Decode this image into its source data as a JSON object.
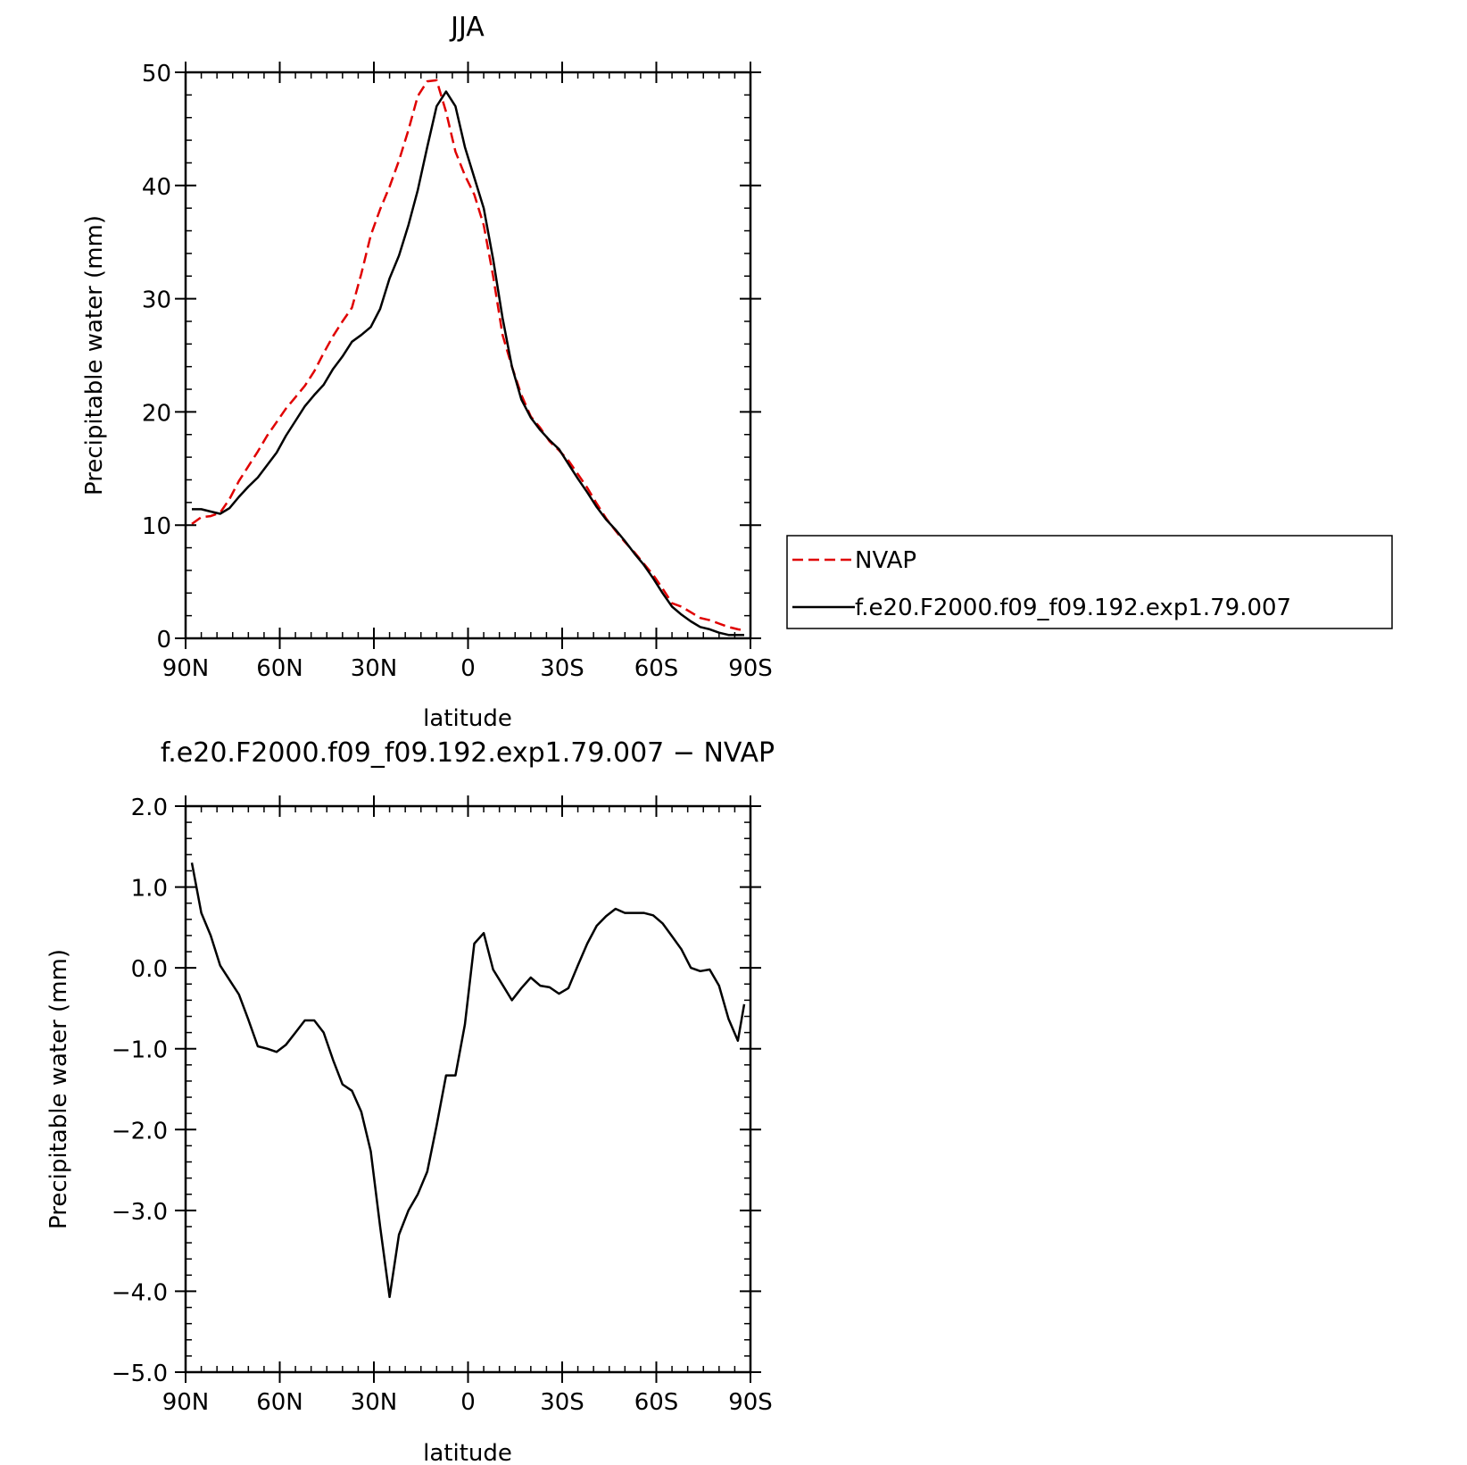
{
  "chart_data": [
    {
      "type": "line",
      "title": "JJA",
      "xlabel": "latitude",
      "ylabel": "Precipitable water (mm)",
      "xlim": [
        90,
        -90
      ],
      "ylim": [
        0,
        50
      ],
      "xticks": [
        {
          "value": 90,
          "label": "90N"
        },
        {
          "value": 60,
          "label": "60N"
        },
        {
          "value": 30,
          "label": "30N"
        },
        {
          "value": 0,
          "label": "0"
        },
        {
          "value": -30,
          "label": "30S"
        },
        {
          "value": -60,
          "label": "60S"
        },
        {
          "value": -90,
          "label": "90S"
        }
      ],
      "yticks": [
        {
          "value": 0,
          "label": "0"
        },
        {
          "value": 10,
          "label": "10"
        },
        {
          "value": 20,
          "label": "20"
        },
        {
          "value": 30,
          "label": "30"
        },
        {
          "value": 40,
          "label": "40"
        },
        {
          "value": 50,
          "label": "50"
        }
      ],
      "legend": "right",
      "series": [
        {
          "name": "NVAP",
          "color": "#e00000",
          "dash": true,
          "x": [
            88,
            85,
            82,
            79,
            76,
            73,
            70,
            67,
            64,
            61,
            58,
            55,
            52,
            49,
            46,
            43,
            40,
            37,
            34,
            31,
            28,
            25,
            22,
            19,
            16,
            13,
            10,
            7,
            4,
            1,
            -2,
            -5,
            -8,
            -11,
            -14,
            -17,
            -20,
            -23,
            -26,
            -29,
            -32,
            -35,
            -38,
            -41,
            -44,
            -47,
            -50,
            -53,
            -56,
            -59,
            -62,
            -65,
            -68,
            -71,
            -74,
            -77,
            -80,
            -83,
            -86,
            -88
          ],
          "y": [
            10.1,
            10.7,
            10.8,
            11.1,
            12.3,
            13.9,
            15.2,
            16.5,
            17.9,
            19.1,
            20.3,
            21.3,
            22.3,
            23.6,
            25.2,
            26.7,
            28.0,
            29.2,
            32.2,
            35.6,
            37.9,
            39.9,
            42.2,
            44.9,
            47.9,
            49.2,
            49.3,
            46.5,
            43.0,
            40.9,
            39.2,
            36.5,
            32.0,
            26.8,
            24.0,
            21.5,
            19.6,
            18.6,
            17.4,
            16.6,
            15.7,
            14.5,
            13.3,
            11.9,
            10.6,
            9.5,
            8.5,
            7.6,
            6.6,
            5.6,
            4.4,
            3.1,
            2.8,
            2.3,
            1.8,
            1.6,
            1.3,
            1.0,
            0.8,
            0.7
          ]
        },
        {
          "name": "f.e20.F2000.f09_f09.192.exp1.79.007",
          "color": "#000000",
          "dash": false,
          "x": [
            88,
            85,
            82,
            79,
            76,
            73,
            70,
            67,
            64,
            61,
            58,
            55,
            52,
            49,
            46,
            43,
            40,
            37,
            34,
            31,
            28,
            25,
            22,
            19,
            16,
            13,
            10,
            7,
            4,
            1,
            -2,
            -5,
            -8,
            -11,
            -14,
            -17,
            -20,
            -23,
            -26,
            -29,
            -32,
            -35,
            -38,
            -41,
            -44,
            -47,
            -50,
            -53,
            -56,
            -59,
            -62,
            -65,
            -68,
            -71,
            -74,
            -77,
            -80,
            -83,
            -86,
            -88
          ],
          "y": [
            11.4,
            11.4,
            11.2,
            11.0,
            11.5,
            12.5,
            13.4,
            14.2,
            15.3,
            16.4,
            17.9,
            19.2,
            20.5,
            21.5,
            22.4,
            23.8,
            24.9,
            26.2,
            26.8,
            27.5,
            29.1,
            31.8,
            33.8,
            36.5,
            39.6,
            43.4,
            47.0,
            48.3,
            47.0,
            43.4,
            40.7,
            38.0,
            33.5,
            28.3,
            24.0,
            21.1,
            19.5,
            18.4,
            17.5,
            16.7,
            15.4,
            14.1,
            12.9,
            11.6,
            10.5,
            9.6,
            8.6,
            7.5,
            6.5,
            5.3,
            4.0,
            2.8,
            2.1,
            1.5,
            1.0,
            0.8,
            0.5,
            0.3,
            0.3,
            0.3
          ]
        }
      ]
    },
    {
      "type": "line",
      "title": "f.e20.F2000.f09_f09.192.exp1.79.007 − NVAP",
      "xlabel": "latitude",
      "ylabel": "Precipitable water (mm)",
      "xlim": [
        90,
        -90
      ],
      "ylim": [
        -5.0,
        2.0
      ],
      "xticks": [
        {
          "value": 90,
          "label": "90N"
        },
        {
          "value": 60,
          "label": "60N"
        },
        {
          "value": 30,
          "label": "30N"
        },
        {
          "value": 0,
          "label": "0"
        },
        {
          "value": -30,
          "label": "30S"
        },
        {
          "value": -60,
          "label": "60S"
        },
        {
          "value": -90,
          "label": "90S"
        }
      ],
      "yticks": [
        {
          "value": 2,
          "label": "2.0"
        },
        {
          "value": 1,
          "label": "1.0"
        },
        {
          "value": 0,
          "label": "0.0"
        },
        {
          "value": -1,
          "label": "−1.0"
        },
        {
          "value": -2,
          "label": "−2.0"
        },
        {
          "value": -3,
          "label": "−3.0"
        },
        {
          "value": -4,
          "label": "−4.0"
        },
        {
          "value": -5,
          "label": "−5.0"
        }
      ],
      "series": [
        {
          "color": "#000000",
          "dash": false,
          "x": [
            88,
            85,
            82,
            79,
            76,
            73,
            70,
            67,
            64,
            61,
            58,
            55,
            52,
            49,
            46,
            43,
            40,
            37,
            34,
            31,
            28,
            25,
            22,
            19,
            16,
            13,
            10,
            7,
            4,
            1,
            -2,
            -5,
            -8,
            -11,
            -14,
            -17,
            -20,
            -23,
            -26,
            -29,
            -32,
            -35,
            -38,
            -41,
            -44,
            -47,
            -50,
            -53,
            -56,
            -59,
            -62,
            -65,
            -68,
            -71,
            -74,
            -77,
            -80,
            -83,
            -86,
            -88
          ],
          "y": [
            1.3,
            0.68,
            0.4,
            0.03,
            -0.15,
            -0.33,
            -0.64,
            -0.97,
            -1.0,
            -1.04,
            -0.95,
            -0.8,
            -0.65,
            -0.65,
            -0.8,
            -1.14,
            -1.44,
            -1.52,
            -1.78,
            -2.27,
            -3.2,
            -4.07,
            -3.3,
            -3.0,
            -2.8,
            -2.52,
            -1.95,
            -1.33,
            -1.33,
            -0.7,
            0.3,
            0.43,
            -0.02,
            -0.21,
            -0.4,
            -0.25,
            -0.12,
            -0.22,
            -0.24,
            -0.32,
            -0.25,
            0.03,
            0.3,
            0.52,
            0.64,
            0.73,
            0.68,
            0.68,
            0.68,
            0.65,
            0.55,
            0.39,
            0.23,
            0.0,
            -0.04,
            -0.02,
            -0.22,
            -0.63,
            -0.9,
            -0.45
          ]
        }
      ]
    }
  ]
}
